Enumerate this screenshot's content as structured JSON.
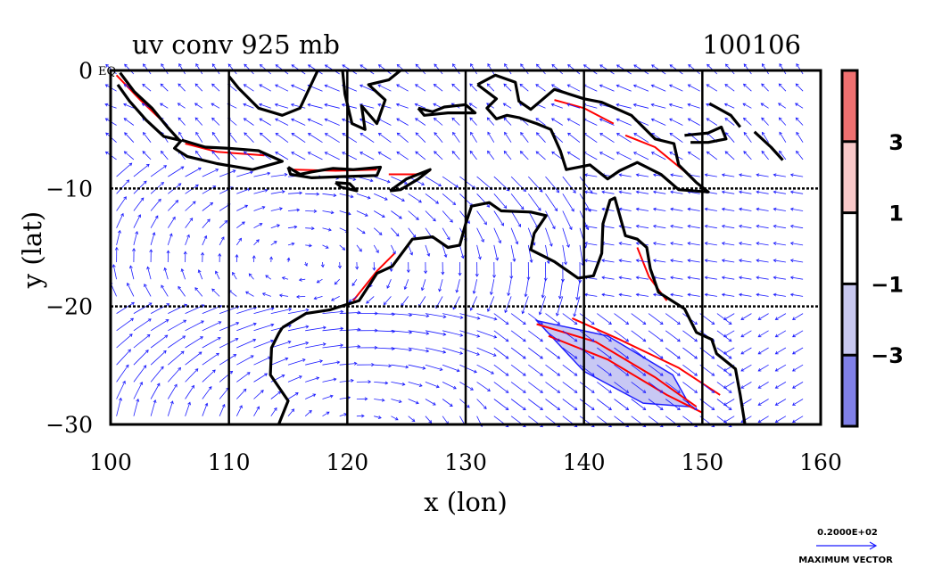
{
  "chart_data": {
    "type": "vector-field-contour",
    "title_left": "uv conv 925 mb",
    "title_right": "100106",
    "xlabel": "x (lon)",
    "ylabel": "y (lat)",
    "xlim": [
      100,
      160
    ],
    "ylim": [
      -30,
      0
    ],
    "x_ticks": [
      100,
      110,
      120,
      130,
      140,
      150,
      160
    ],
    "x_tick_labels": [
      "100",
      "110",
      "120",
      "130",
      "140",
      "150",
      "160"
    ],
    "y_ticks": [
      0,
      -10,
      -20,
      -30
    ],
    "y_tick_labels": [
      "0",
      "−10",
      "−20",
      "−30"
    ],
    "y_top_extra_label": "EQ",
    "grid": true,
    "colorbar": {
      "levels": [
        "3",
        "1",
        "−1",
        "−3"
      ],
      "bands": [
        {
          "from": 5,
          "to": 3,
          "color": "#f07070"
        },
        {
          "from": 3,
          "to": 1,
          "color": "#f8c8c8"
        },
        {
          "from": 1,
          "to": -1,
          "color": "#ffffff"
        },
        {
          "from": -1,
          "to": -3,
          "color": "#c8c8f0"
        },
        {
          "from": -3,
          "to": -5,
          "color": "#8080e8"
        }
      ]
    },
    "vector_key": {
      "value_label": "0.2000E+02",
      "caption": "MAXIMUM VECTOR"
    },
    "colors": {
      "vector": "#1a1aff",
      "positive_contour": "#ff0000",
      "negative_contour": "#2020ff",
      "coast": "#000000"
    }
  }
}
